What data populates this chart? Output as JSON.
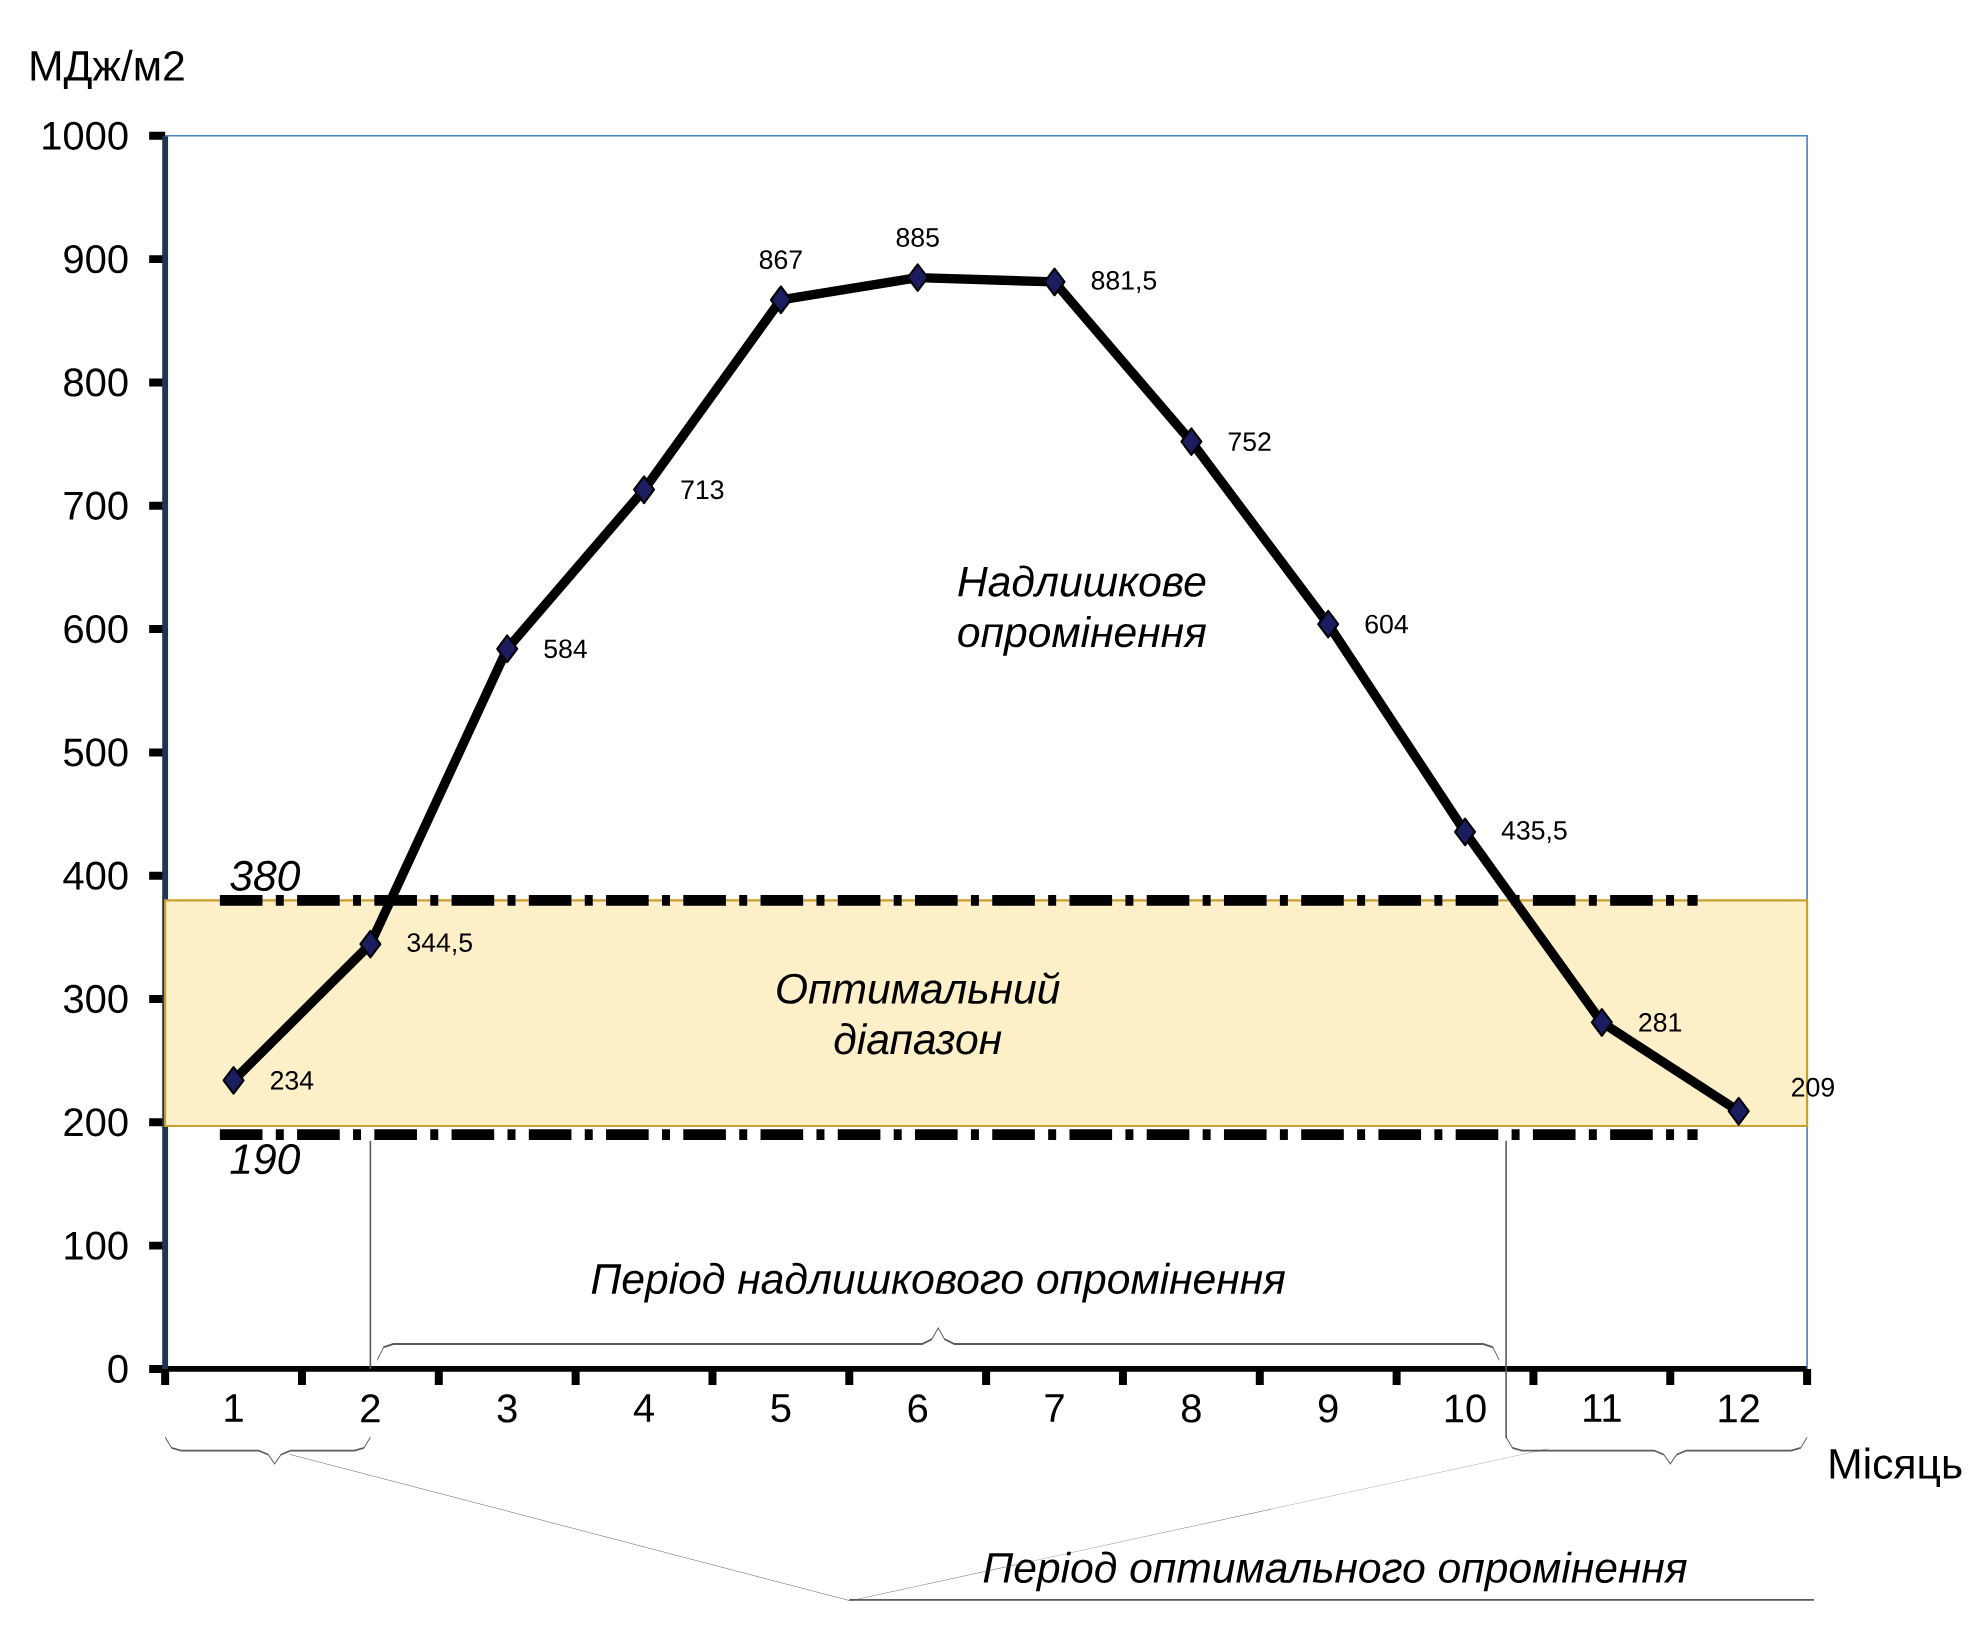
{
  "chart_data": {
    "type": "line",
    "ylabel": "МДж/м2",
    "xlabel": "Місяць",
    "categories": [
      "1",
      "2",
      "3",
      "4",
      "5",
      "6",
      "7",
      "8",
      "9",
      "10",
      "11",
      "12"
    ],
    "series": [
      {
        "color": "#000000",
        "values": [
          234,
          344.5,
          584,
          713,
          867,
          885,
          881.5,
          752,
          604,
          435.5,
          281,
          209
        ],
        "value_labels": [
          "234",
          "344,5",
          "584",
          "713",
          "867",
          "885",
          "881,5",
          "752",
          "604",
          "435,5",
          "281",
          "209"
        ]
      }
    ],
    "ylim": [
      0,
      1000
    ],
    "yticks": [
      0,
      100,
      200,
      300,
      400,
      500,
      600,
      700,
      800,
      900,
      1000
    ],
    "marker": "diamond",
    "line_style": "solid",
    "grid": false,
    "ref_lines": [
      {
        "axis": "y",
        "value": 380,
        "label": "380",
        "color": "#000000",
        "line_style": "dashed"
      },
      {
        "axis": "y",
        "value": 190,
        "label": "190",
        "color": "#000000",
        "line_style": "dashed"
      }
    ],
    "bands": [
      {
        "axis": "y",
        "from": 197,
        "to": 380,
        "label": "Оптимальний діапазон",
        "color": "#fdefc8"
      }
    ],
    "annotations": [
      "Надлишкове опромінення",
      "Період надлишкового опромінення",
      "Період оптимального опромінення"
    ]
  }
}
